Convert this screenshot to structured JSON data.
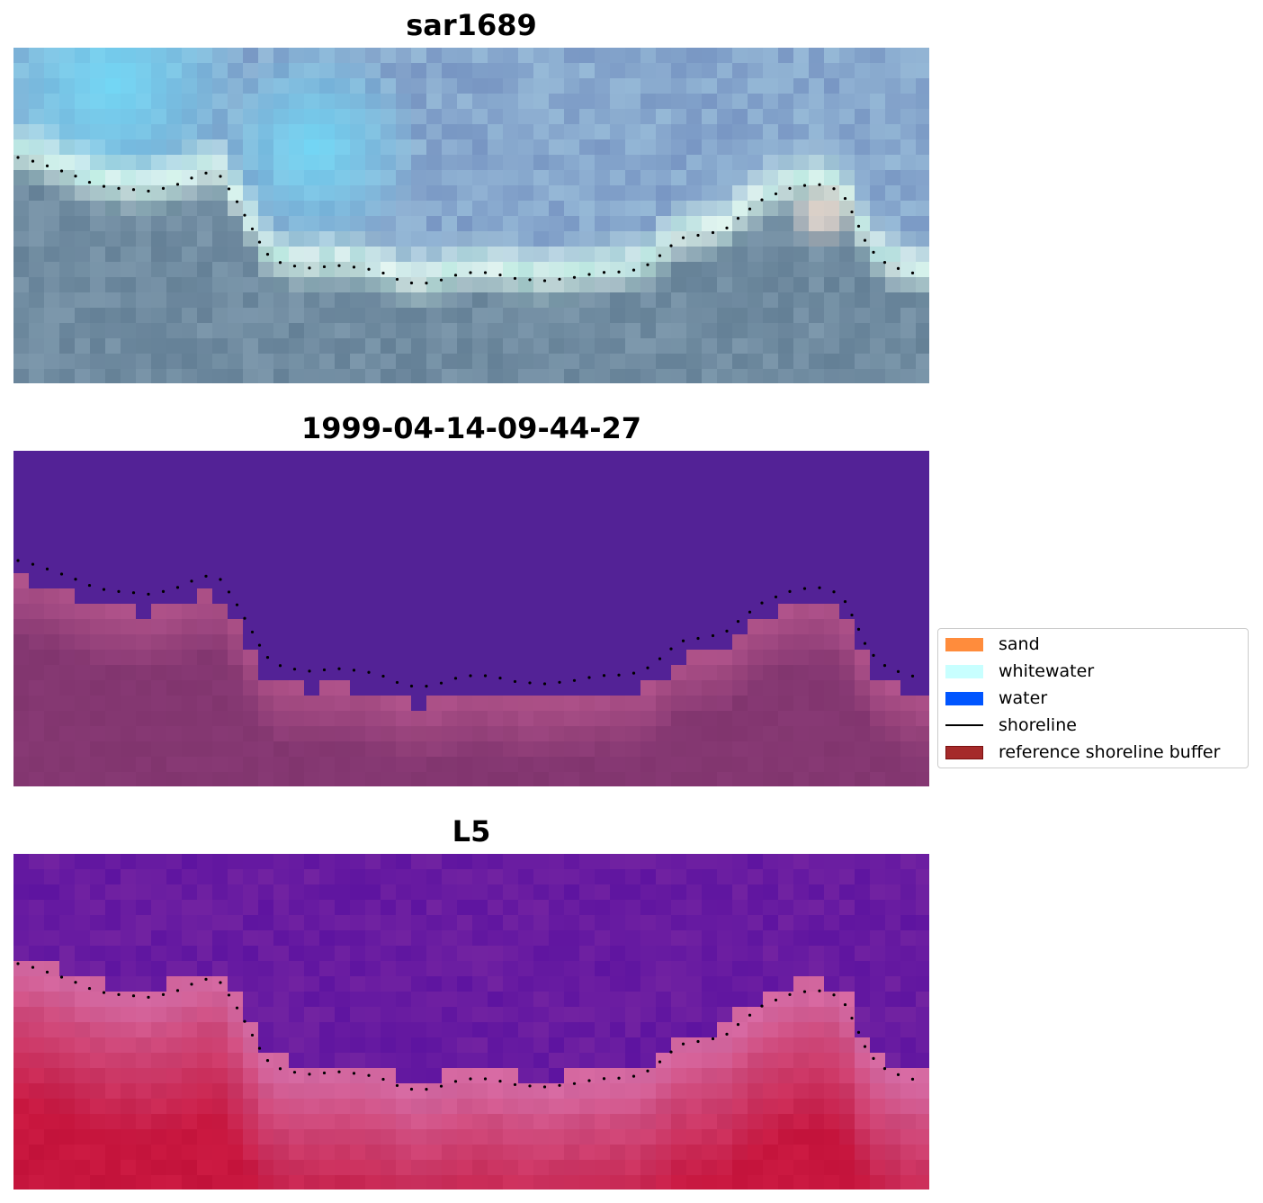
{
  "panels": [
    {
      "title": "sar1689",
      "kind": "rgb-image"
    },
    {
      "title": "1999-04-14-09-44-27",
      "kind": "classified-image"
    },
    {
      "title": "L5",
      "kind": "index-image"
    }
  ],
  "legend": {
    "items": [
      {
        "label": "sand",
        "type": "patch",
        "color": "#ff8c3c"
      },
      {
        "label": "whitewater",
        "type": "patch",
        "color": "#c8ffff"
      },
      {
        "label": "water",
        "type": "patch",
        "color": "#0055ff"
      },
      {
        "label": "shoreline",
        "type": "line",
        "color": "#000000"
      },
      {
        "label": "reference shoreline buffer",
        "type": "patch",
        "color": "#a52a2a",
        "edge": "#7a1010"
      }
    ]
  },
  "colors": {
    "classified_water": "#532296",
    "classified_land": "#81356e",
    "index_low": "#5e14a0",
    "index_high": "#c2123a"
  }
}
